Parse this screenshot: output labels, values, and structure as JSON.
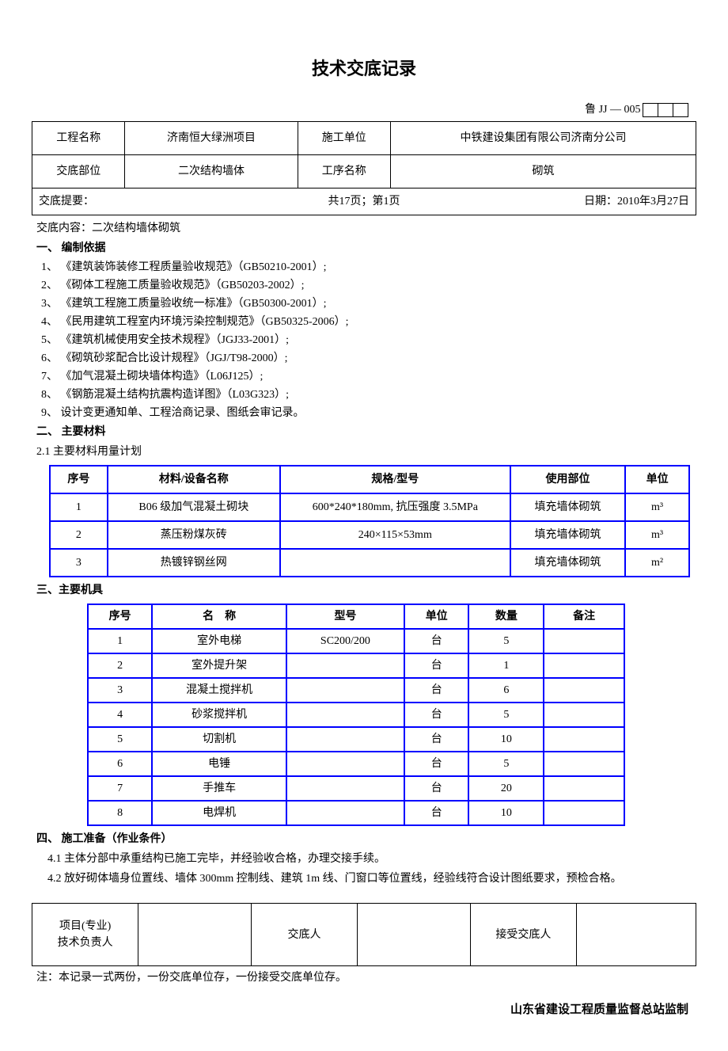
{
  "title": "技术交底记录",
  "doc_id": "鲁 JJ — 005",
  "info": {
    "project_name_label": "工程名称",
    "project_name": "济南恒大绿洲项目",
    "construction_unit_label": "施工单位",
    "construction_unit": "中铁建设集团有限公司济南分公司",
    "disclosure_part_label": "交底部位",
    "disclosure_part": "二次结构墙体",
    "process_name_label": "工序名称",
    "process_name": "砌筑"
  },
  "summary": {
    "label": "交底提要：",
    "pages": "共17页；第1页",
    "date": "日期：2010年3月27日"
  },
  "content_header": "交底内容：二次结构墙体砌筑",
  "section1": {
    "heading": "一、 编制依据",
    "items": [
      "1、 《建筑装饰装修工程质量验收规范》（GB50210-2001）;",
      "2、 《砌体工程施工质量验收规范》（GB50203-2002）;",
      "3、 《建筑工程施工质量验收统一标准》（GB50300-2001）;",
      "4、 《民用建筑工程室内环境污染控制规范》（GB50325-2006）;",
      "5、 《建筑机械使用安全技术规程》（JGJ33-2001）;",
      "6、 《砌筑砂浆配合比设计规程》（JGJ/T98-2000）;",
      "7、 《加气混凝土砌块墙体构造》（L06J125）;",
      "8、 《钢筋混凝土结构抗震构造详图》（L03G323）;",
      "9、 设计变更通知单、工程洽商记录、图纸会审记录。"
    ]
  },
  "section2": {
    "heading": "二、 主要材料",
    "subheading": "2.1 主要材料用量计划",
    "table": {
      "columns": [
        "序号",
        "材料/设备名称",
        "规格/型号",
        "使用部位",
        "单位"
      ],
      "col_widths": [
        "9%",
        "27%",
        "36%",
        "18%",
        "10%"
      ],
      "rows": [
        [
          "1",
          "B06 级加气混凝土砌块",
          "600*240*180mm, 抗压强度 3.5MPa",
          "填充墙体砌筑",
          "m³"
        ],
        [
          "2",
          "蒸压粉煤灰砖",
          "240×115×53mm",
          "填充墙体砌筑",
          "m³"
        ],
        [
          "3",
          "热镀锌钢丝网",
          "",
          "填充墙体砌筑",
          "m²"
        ]
      ]
    }
  },
  "section3": {
    "heading": "三、主要机具",
    "table": {
      "columns": [
        "序号",
        "名　称",
        "型号",
        "单位",
        "数量",
        "备注"
      ],
      "col_widths": [
        "12%",
        "25%",
        "22%",
        "12%",
        "14%",
        "15%"
      ],
      "rows": [
        [
          "1",
          "室外电梯",
          "SC200/200",
          "台",
          "5",
          ""
        ],
        [
          "2",
          "室外提升架",
          "",
          "台",
          "1",
          ""
        ],
        [
          "3",
          "混凝土搅拌机",
          "",
          "台",
          "6",
          ""
        ],
        [
          "4",
          "砂浆搅拌机",
          "",
          "台",
          "5",
          ""
        ],
        [
          "5",
          "切割机",
          "",
          "台",
          "10",
          ""
        ],
        [
          "6",
          "电锤",
          "",
          "台",
          "5",
          ""
        ],
        [
          "7",
          "手推车",
          "",
          "台",
          "20",
          ""
        ],
        [
          "8",
          "电焊机",
          "",
          "台",
          "10",
          ""
        ]
      ]
    }
  },
  "section4": {
    "heading": "四、 施工准备（作业条件）",
    "items": [
      "　4.1 主体分部中承重结构已施工完毕，并经验收合格，办理交接手续。",
      "　4.2 放好砌体墙身位置线、墙体 300mm 控制线、建筑 1m 线、门窗口等位置线，经验线符合设计图纸要求，预检合格。"
    ]
  },
  "signatures": {
    "proj_tech_lead": "项目(专业)\n技术负责人",
    "disclosure_person": "交底人",
    "receiver": "接受交底人"
  },
  "footnote": "注：本记录一式两份，一份交底单位存，一份接受交底单位存。",
  "supervisor": "山东省建设工程质量监督总站监制"
}
